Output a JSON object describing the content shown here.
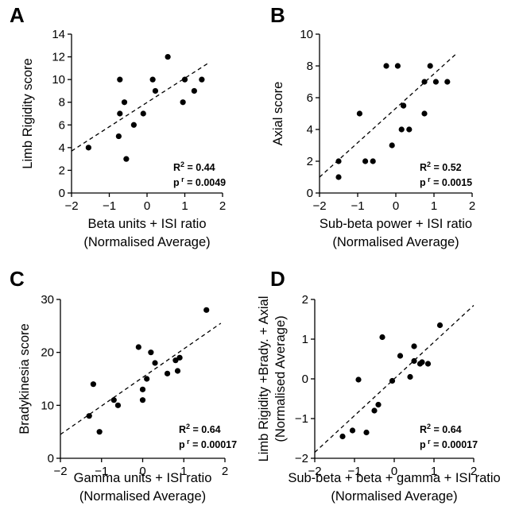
{
  "chart_data": [
    {
      "panel": "A",
      "type": "scatter",
      "xlabel": [
        "Beta units + ISI ratio",
        "(Normalised Average)"
      ],
      "ylabel": [
        "Limb Rigidity score"
      ],
      "xlim": [
        -2,
        2
      ],
      "ylim": [
        0,
        14
      ],
      "xticks": [
        -2,
        -1,
        0,
        1,
        2
      ],
      "yticks": [
        0,
        2,
        4,
        6,
        8,
        10,
        12,
        14
      ],
      "x": [
        -1.55,
        -0.75,
        -0.72,
        -0.72,
        -0.6,
        -0.55,
        -0.35,
        -0.1,
        0.15,
        0.22,
        0.55,
        0.95,
        1.0,
        1.25,
        1.45
      ],
      "y": [
        4,
        5,
        7,
        10,
        8,
        3,
        6,
        7,
        10,
        9,
        12,
        8,
        10,
        9,
        10
      ],
      "fit": [
        [
          -2,
          3.7
        ],
        [
          1.6,
          11.4
        ]
      ],
      "r2_value": "0.44",
      "p_value": "0.0049"
    },
    {
      "panel": "B",
      "type": "scatter",
      "xlabel": [
        "Sub-beta power + ISI ratio",
        "(Normalised Average)"
      ],
      "ylabel": [
        "Axial score"
      ],
      "xlim": [
        -2,
        2
      ],
      "ylim": [
        0,
        10
      ],
      "xticks": [
        -2,
        -1,
        0,
        1,
        2
      ],
      "yticks": [
        0,
        2,
        4,
        6,
        8,
        10
      ],
      "x": [
        -1.5,
        -1.5,
        -0.95,
        -0.8,
        -0.6,
        -0.25,
        -0.1,
        0.05,
        0.15,
        0.2,
        0.2,
        0.35,
        0.75,
        0.75,
        0.9,
        1.05,
        1.35
      ],
      "y": [
        1,
        2,
        5,
        2,
        2,
        8,
        3,
        8,
        4,
        5.5,
        5.5,
        4,
        5,
        7,
        8,
        7,
        7
      ],
      "fit": [
        [
          -2,
          1.0
        ],
        [
          1.6,
          8.8
        ]
      ],
      "r2_value": "0.52",
      "p_value": "0.0015"
    },
    {
      "panel": "C",
      "type": "scatter",
      "xlabel": [
        "Gamma units + ISI ratio",
        "(Normalised Average)"
      ],
      "ylabel": [
        "Bradykinesia score"
      ],
      "xlim": [
        -2,
        2
      ],
      "ylim": [
        0,
        30
      ],
      "xticks": [
        -2,
        -1,
        0,
        1,
        2
      ],
      "yticks": [
        0,
        10,
        20,
        30
      ],
      "x": [
        -1.3,
        -1.2,
        -1.05,
        -0.7,
        -0.6,
        -0.1,
        0.0,
        0.0,
        0.1,
        0.2,
        0.3,
        0.6,
        0.8,
        0.85,
        0.9,
        1.55
      ],
      "y": [
        8,
        14,
        5,
        11,
        10,
        21,
        13,
        11,
        15,
        20,
        18,
        16,
        18.5,
        16.5,
        19,
        28
      ],
      "fit": [
        [
          -2,
          4.5
        ],
        [
          1.9,
          25.5
        ]
      ],
      "r2_value": "0.64",
      "p_value": "0.00017"
    },
    {
      "panel": "D",
      "type": "scatter",
      "xlabel": [
        "Sub-beta + beta + gamma + ISI ratio",
        "(Normalised Average)"
      ],
      "ylabel": [
        "Limb Rigidity  +Brady. + Axial",
        "(Normalised Average)"
      ],
      "xlim": [
        -2,
        2
      ],
      "ylim": [
        -2,
        2
      ],
      "xticks": [
        -2,
        -1,
        0,
        1,
        2
      ],
      "yticks": [
        -2,
        -1,
        0,
        1,
        2
      ],
      "x": [
        -1.3,
        -1.05,
        -0.9,
        -0.7,
        -0.5,
        -0.4,
        -0.3,
        -0.05,
        0.15,
        0.4,
        0.5,
        0.5,
        0.65,
        0.7,
        0.85,
        1.15
      ],
      "y": [
        -1.45,
        -1.3,
        -0.02,
        -1.35,
        -0.8,
        -0.65,
        1.05,
        -0.05,
        0.58,
        0.05,
        0.45,
        0.82,
        0.38,
        0.42,
        0.38,
        1.35
      ],
      "fit": [
        [
          -2,
          -1.85
        ],
        [
          2,
          1.85
        ]
      ],
      "r2_value": "0.64",
      "p_value": "0.00017"
    }
  ],
  "labels": {
    "r2_prefix": "R",
    "r2_sup": "2",
    "p_prefix": "p",
    "p_sup": "r"
  },
  "colors": {
    "ink": "#000000",
    "background": "#ffffff"
  }
}
